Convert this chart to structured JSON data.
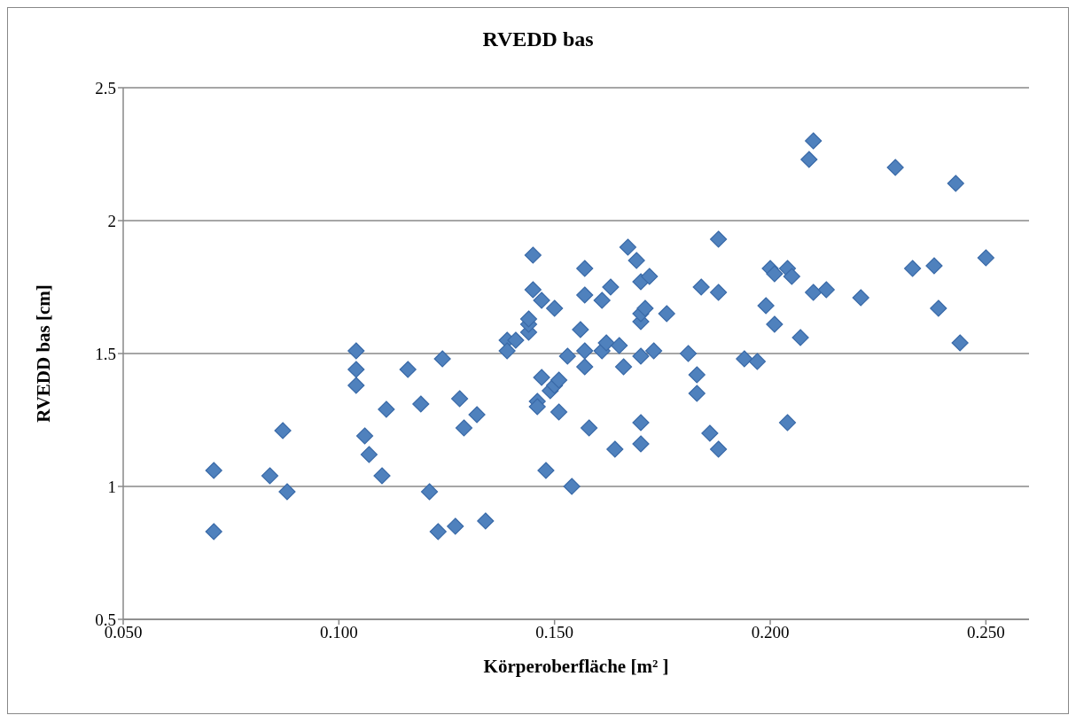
{
  "chart_data": {
    "type": "scatter",
    "title": "RVEDD bas",
    "xlabel": "Körperoberfläche [m² ]",
    "ylabel": "RVEDD bas [cm]",
    "x": [
      0.071,
      0.071,
      0.084,
      0.087,
      0.088,
      0.104,
      0.104,
      0.104,
      0.106,
      0.107,
      0.11,
      0.111,
      0.116,
      0.119,
      0.121,
      0.123,
      0.124,
      0.127,
      0.128,
      0.129,
      0.132,
      0.134,
      0.139,
      0.139,
      0.141,
      0.144,
      0.144,
      0.144,
      0.145,
      0.145,
      0.146,
      0.146,
      0.147,
      0.147,
      0.148,
      0.149,
      0.15,
      0.15,
      0.151,
      0.151,
      0.153,
      0.154,
      0.156,
      0.157,
      0.157,
      0.157,
      0.157,
      0.158,
      0.161,
      0.161,
      0.162,
      0.163,
      0.164,
      0.165,
      0.166,
      0.167,
      0.169,
      0.17,
      0.17,
      0.17,
      0.17,
      0.17,
      0.17,
      0.171,
      0.172,
      0.173,
      0.176,
      0.181,
      0.183,
      0.183,
      0.184,
      0.186,
      0.188,
      0.188,
      0.188,
      0.194,
      0.197,
      0.199,
      0.2,
      0.201,
      0.201,
      0.204,
      0.204,
      0.205,
      0.207,
      0.209,
      0.21,
      0.21,
      0.213,
      0.221,
      0.229,
      0.233,
      0.238,
      0.239,
      0.243,
      0.244,
      0.25
    ],
    "values": [
      1.06,
      0.83,
      1.04,
      1.21,
      0.98,
      1.51,
      1.44,
      1.38,
      1.19,
      1.12,
      1.04,
      1.29,
      1.44,
      1.31,
      0.98,
      0.83,
      1.48,
      0.85,
      1.33,
      1.22,
      1.27,
      0.87,
      1.55,
      1.51,
      1.55,
      1.58,
      1.61,
      1.63,
      1.87,
      1.74,
      1.32,
      1.3,
      1.7,
      1.41,
      1.06,
      1.36,
      1.38,
      1.67,
      1.28,
      1.4,
      1.49,
      1.0,
      1.59,
      1.51,
      1.82,
      1.45,
      1.72,
      1.22,
      1.7,
      1.51,
      1.54,
      1.75,
      1.14,
      1.53,
      1.45,
      1.9,
      1.85,
      1.62,
      1.65,
      1.77,
      1.24,
      1.49,
      1.16,
      1.67,
      1.79,
      1.51,
      1.65,
      1.5,
      1.35,
      1.42,
      1.75,
      1.2,
      1.93,
      1.14,
      1.73,
      1.48,
      1.47,
      1.68,
      1.82,
      1.8,
      1.61,
      1.82,
      1.24,
      1.79,
      1.56,
      2.23,
      2.3,
      1.73,
      1.74,
      1.71,
      2.2,
      1.82,
      1.83,
      1.67,
      2.14,
      1.54,
      1.86
    ],
    "color": "#4f81bd",
    "marker": "diamond",
    "xlim": [
      0.05,
      0.26
    ],
    "xticks": [
      {
        "value": 0.05,
        "label": "0.050"
      },
      {
        "value": 0.1,
        "label": "0.100"
      },
      {
        "value": 0.15,
        "label": "0.150"
      },
      {
        "value": 0.2,
        "label": "0.200"
      },
      {
        "value": 0.25,
        "label": "0.250"
      }
    ],
    "ylim": [
      0.5,
      2.5
    ],
    "yticks": [
      0.5,
      1,
      1.5,
      2,
      2.5
    ],
    "grid": "y"
  }
}
